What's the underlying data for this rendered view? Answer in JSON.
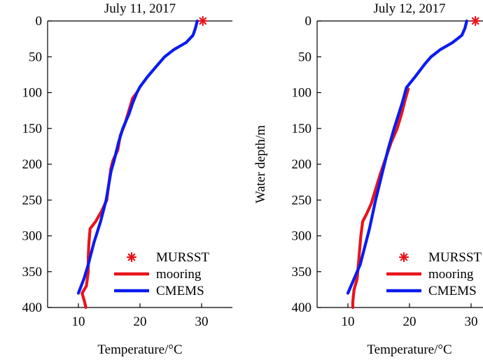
{
  "chart_data": [
    {
      "type": "line",
      "title": "July 11, 2017",
      "xlabel": "Temperature/°C",
      "ylabel": "",
      "xlim": [
        5,
        35
      ],
      "ylim": [
        0,
        400
      ],
      "y_inverted": true,
      "xticks": [
        10,
        20,
        30
      ],
      "yticks": [
        0,
        50,
        100,
        150,
        200,
        250,
        300,
        350,
        400
      ],
      "series": [
        {
          "name": "MURSST",
          "style": "marker",
          "marker": "asterisk",
          "color": "#e8141b",
          "points": [
            [
              30.2,
              0
            ]
          ]
        },
        {
          "name": "mooring",
          "style": "line",
          "color": "#e8141b",
          "points": [
            [
              19.5,
              100
            ],
            [
              18.8,
              108
            ],
            [
              18.2,
              125
            ],
            [
              17.5,
              145
            ],
            [
              16.8,
              160
            ],
            [
              16.4,
              180
            ],
            [
              15.6,
              195
            ],
            [
              15.3,
              205
            ],
            [
              14.9,
              230
            ],
            [
              14.6,
              250
            ],
            [
              13.8,
              265
            ],
            [
              12.8,
              280
            ],
            [
              11.9,
              290
            ],
            [
              11.7,
              310
            ],
            [
              11.6,
              330
            ],
            [
              11.6,
              350
            ],
            [
              11.3,
              370
            ],
            [
              10.6,
              380
            ],
            [
              11.0,
              392
            ],
            [
              11.2,
              400
            ]
          ]
        },
        {
          "name": "CMEMS",
          "style": "line",
          "color": "#0a1cf0",
          "points": [
            [
              29.3,
              0
            ],
            [
              29.0,
              10
            ],
            [
              28.6,
              20
            ],
            [
              27.5,
              30
            ],
            [
              25.5,
              40
            ],
            [
              24.0,
              50
            ],
            [
              22.8,
              62
            ],
            [
              21.2,
              78
            ],
            [
              20.0,
              92
            ],
            [
              19.5,
              100
            ],
            [
              18.8,
              115
            ],
            [
              18.2,
              130
            ],
            [
              17.2,
              150
            ],
            [
              16.5,
              170
            ],
            [
              15.8,
              195
            ],
            [
              15.3,
              210
            ],
            [
              14.5,
              250
            ],
            [
              13.6,
              280
            ],
            [
              12.5,
              310
            ],
            [
              11.6,
              340
            ],
            [
              10.9,
              360
            ],
            [
              10.0,
              380
            ]
          ]
        }
      ]
    },
    {
      "type": "line",
      "title": "July 12, 2017",
      "xlabel": "Temperature/°C",
      "ylabel": "Water depth/m",
      "xlim": [
        5,
        35
      ],
      "ylim": [
        0,
        400
      ],
      "y_inverted": true,
      "xticks": [
        10,
        20,
        30
      ],
      "yticks": [
        0,
        50,
        100,
        150,
        200,
        250,
        300,
        350,
        400
      ],
      "series": [
        {
          "name": "MURSST",
          "style": "marker",
          "marker": "asterisk",
          "color": "#e8141b",
          "points": [
            [
              30.7,
              0
            ]
          ]
        },
        {
          "name": "mooring",
          "style": "line",
          "color": "#e8141b",
          "points": [
            [
              19.8,
              95
            ],
            [
              19.3,
              110
            ],
            [
              18.7,
              130
            ],
            [
              18.0,
              150
            ],
            [
              17.0,
              170
            ],
            [
              16.0,
              195
            ],
            [
              15.2,
              215
            ],
            [
              14.5,
              235
            ],
            [
              13.8,
              255
            ],
            [
              13.0,
              270
            ],
            [
              12.4,
              280
            ],
            [
              12.1,
              300
            ],
            [
              11.9,
              320
            ],
            [
              11.7,
              340
            ],
            [
              11.5,
              360
            ],
            [
              11.0,
              375
            ],
            [
              10.8,
              392
            ],
            [
              10.8,
              400
            ]
          ]
        },
        {
          "name": "CMEMS",
          "style": "line",
          "color": "#0a1cf0",
          "points": [
            [
              29.3,
              0
            ],
            [
              29.0,
              10
            ],
            [
              28.5,
              20
            ],
            [
              27.0,
              30
            ],
            [
              25.0,
              40
            ],
            [
              23.5,
              50
            ],
            [
              22.5,
              60
            ],
            [
              21.0,
              77
            ],
            [
              19.5,
              93
            ],
            [
              18.8,
              115
            ],
            [
              17.5,
              150
            ],
            [
              16.5,
              180
            ],
            [
              15.5,
              215
            ],
            [
              14.5,
              250
            ],
            [
              13.5,
              290
            ],
            [
              12.0,
              340
            ],
            [
              11.0,
              360
            ],
            [
              10.0,
              380
            ]
          ]
        }
      ],
      "legend_position": "bottom-right"
    }
  ]
}
